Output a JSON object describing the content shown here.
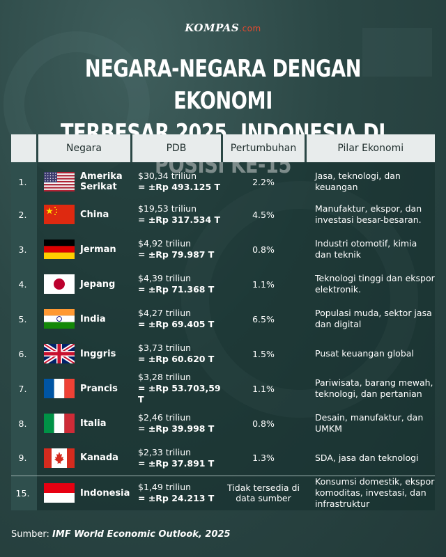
{
  "logo": {
    "main": "KOMPAS",
    "suffix": ".com"
  },
  "title": {
    "line1": "NEGARA-NEGARA DENGAN EKONOMI",
    "line2": "TERBESAR 2025, INDONESIA DI POSISI KE-15"
  },
  "table": {
    "headers": {
      "no": "",
      "country": "Negara",
      "pdb": "PDB",
      "growth": "Pertumbuhan",
      "pillar": "Pilar Ekonomi"
    },
    "rows": [
      {
        "rank": "1.",
        "country": "Amerika Serikat",
        "flag": "us-flag-icon",
        "pdb_usd": "$30,34 triliun",
        "pdb_idr": "= ±Rp 493.125 T",
        "growth": "2.2%",
        "pillar": "Jasa, teknologi, dan keuangan"
      },
      {
        "rank": "2.",
        "country": "China",
        "flag": "china-flag-icon",
        "pdb_usd": "$19,53 triliun",
        "pdb_idr": "= ±Rp 317.534 T",
        "growth": "4.5%",
        "pillar": "Manufaktur, ekspor, dan investasi besar-besaran."
      },
      {
        "rank": "3.",
        "country": "Jerman",
        "flag": "germany-flag-icon",
        "pdb_usd": "$4,92 triliun",
        "pdb_idr": "= ±Rp 79.987 T",
        "growth": "0.8%",
        "pillar": "Industri otomotif, kimia dan teknik"
      },
      {
        "rank": "4.",
        "country": "Jepang",
        "flag": "japan-flag-icon",
        "pdb_usd": "$4,39 triliun",
        "pdb_idr": "= ±Rp 71.368 T",
        "growth": "1.1%",
        "pillar": "Teknologi tinggi dan ekspor elektronik."
      },
      {
        "rank": "5.",
        "country": "India",
        "flag": "india-flag-icon",
        "pdb_usd": "$4,27 triliun",
        "pdb_idr": "= ±Rp 69.405 T",
        "growth": "6.5%",
        "pillar": "Populasi muda, sektor jasa dan digital"
      },
      {
        "rank": "6.",
        "country": "Inggris",
        "flag": "uk-flag-icon",
        "pdb_usd": "$3,73 triliun",
        "pdb_idr": "= ±Rp 60.620 T",
        "growth": "1.5%",
        "pillar": "Pusat keuangan global"
      },
      {
        "rank": "7.",
        "country": "Prancis",
        "flag": "france-flag-icon",
        "pdb_usd": "$3,28 triliun",
        "pdb_idr": "= ±Rp 53.703,59 T",
        "growth": "1.1%",
        "pillar": "Pariwisata, barang mewah, teknologi, dan  pertanian"
      },
      {
        "rank": "8.",
        "country": "Italia",
        "flag": "italy-flag-icon",
        "pdb_usd": "$2,46 triliun",
        "pdb_idr": "= ±Rp 39.998 T",
        "growth": "0.8%",
        "pillar": "Desain, manufaktur, dan UMKM"
      },
      {
        "rank": "9.",
        "country": "Kanada",
        "flag": "canada-flag-icon",
        "pdb_usd": "$2,33 triliun",
        "pdb_idr": "= ±Rp 37.891 T",
        "growth": "1.3%",
        "pillar": "SDA, jasa dan teknologi"
      },
      {
        "rank": "15.",
        "country": "Indonesia",
        "flag": "indonesia-flag-icon",
        "pdb_usd": "$1,49 triliun",
        "pdb_idr": "= ±Rp 24.213 T",
        "growth": "Tidak tersedia di data sumber",
        "pillar": "Konsumsi domestik, ekspor komoditas, investasi, dan infrastruktur"
      }
    ]
  },
  "source": {
    "label": "Sumber:",
    "ref": "IMF World Economic Outlook, 2025"
  }
}
